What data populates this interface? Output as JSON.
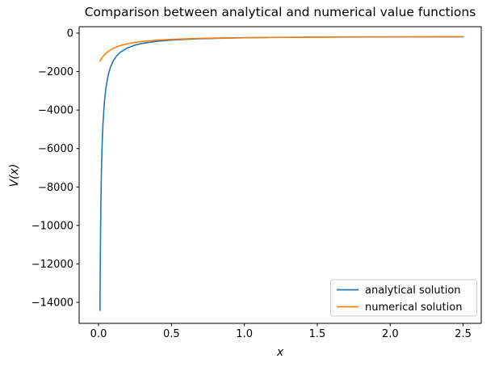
{
  "chart_data": {
    "type": "line",
    "title": "Comparison between analytical and numerical value functions",
    "xlabel": "x",
    "ylabel": "V(x)",
    "xlim": [
      -0.133,
      2.624
    ],
    "ylim": [
      -15092,
      336
    ],
    "grid": false,
    "legend_position": "lower right",
    "x_ticks": {
      "values": [
        0.0,
        0.5,
        1.0,
        1.5,
        2.0,
        2.5
      ],
      "labels": [
        "0.0",
        "0.5",
        "1.0",
        "1.5",
        "2.0",
        "2.5"
      ]
    },
    "y_ticks": {
      "values": [
        0,
        -2000,
        -4000,
        -6000,
        -8000,
        -10000,
        -12000,
        -14000
      ],
      "labels": [
        "0",
        "−2000",
        "−4000",
        "−6000",
        "−8000",
        "−10000",
        "−12000",
        "−14000"
      ]
    },
    "x": [
      0.01,
      0.011,
      0.012,
      0.014,
      0.016,
      0.018,
      0.02,
      0.025,
      0.03,
      0.04,
      0.05,
      0.065,
      0.08,
      0.1,
      0.125,
      0.15,
      0.2,
      0.25,
      0.3,
      0.4,
      0.5,
      0.65,
      0.8,
      1.0,
      1.25,
      1.5,
      1.75,
      2.0,
      2.25,
      2.5
    ],
    "series": [
      {
        "name": "analytical solution",
        "color": "#1f77b4",
        "values": [
          -14419,
          -13105,
          -12009,
          -10289,
          -9000,
          -7997,
          -7196,
          -5754,
          -4795,
          -3598,
          -2881,
          -2222,
          -1812,
          -1458,
          -1177,
          -990,
          -760,
          -623,
          -534,
          -424,
          -360,
          -303,
          -269,
          -242,
          -221,
          -209,
          -201,
          -196,
          -193,
          -190
        ]
      },
      {
        "name": "numerical solution",
        "color": "#ff7f0e",
        "values": [
          -1458,
          -1444,
          -1430,
          -1404,
          -1378,
          -1354,
          -1330,
          -1274,
          -1223,
          -1134,
          -1057,
          -960,
          -881,
          -796,
          -712,
          -646,
          -549,
          -482,
          -432,
          -365,
          -322,
          -281,
          -255,
          -233,
          -216,
          -206,
          -199,
          -195,
          -192,
          -189
        ]
      }
    ]
  }
}
